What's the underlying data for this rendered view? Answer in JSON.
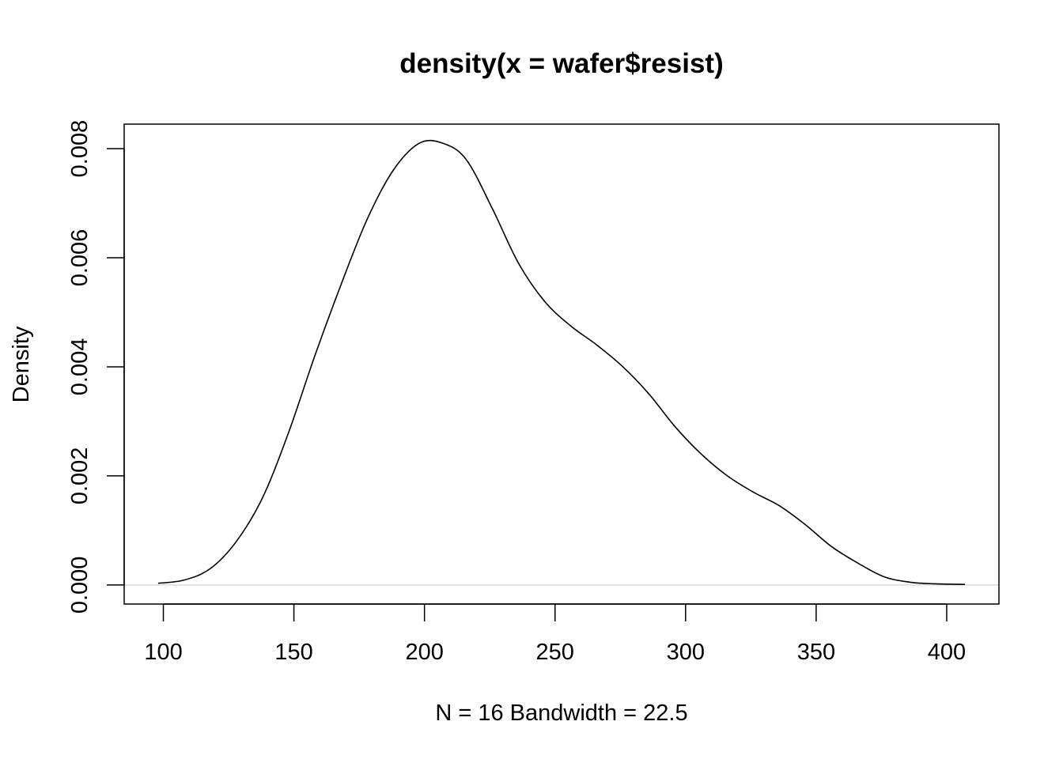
{
  "chart_data": {
    "type": "line",
    "title": "density(x = wafer$resist)",
    "xlabel": "N = 16   Bandwidth = 22.5",
    "ylabel": "Density",
    "xlim": [
      85,
      420
    ],
    "ylim": [
      -0.00035,
      0.00845
    ],
    "grid": false,
    "zero_line": true,
    "x_ticks": [
      100,
      150,
      200,
      250,
      300,
      350,
      400
    ],
    "y_ticks": [
      0.0,
      0.002,
      0.004,
      0.006,
      0.008
    ],
    "x_tick_labels": [
      "100",
      "150",
      "200",
      "250",
      "300",
      "350",
      "400"
    ],
    "y_tick_labels": [
      "0.000",
      "0.002",
      "0.004",
      "0.006",
      "0.008"
    ],
    "series": [
      {
        "x": [
          98,
          108,
          118,
          128,
          138,
          148,
          158,
          168,
          178,
          188,
          198,
          207,
          216,
          226,
          236,
          246,
          256,
          266,
          276,
          286,
          296,
          306,
          316,
          326,
          336,
          346,
          356,
          366,
          376,
          386,
          396,
          407
        ],
        "y": [
          3e-05,
          9e-05,
          0.0003,
          0.0008,
          0.0016,
          0.0028,
          0.0042,
          0.0055,
          0.0067,
          0.0076,
          0.0081,
          0.0081,
          0.0078,
          0.0069,
          0.0059,
          0.0052,
          0.00475,
          0.0044,
          0.004,
          0.0035,
          0.0029,
          0.0024,
          0.002,
          0.0017,
          0.00145,
          0.0011,
          0.0007,
          0.0004,
          0.00015,
          5e-05,
          2e-05,
          1e-05
        ]
      }
    ]
  }
}
